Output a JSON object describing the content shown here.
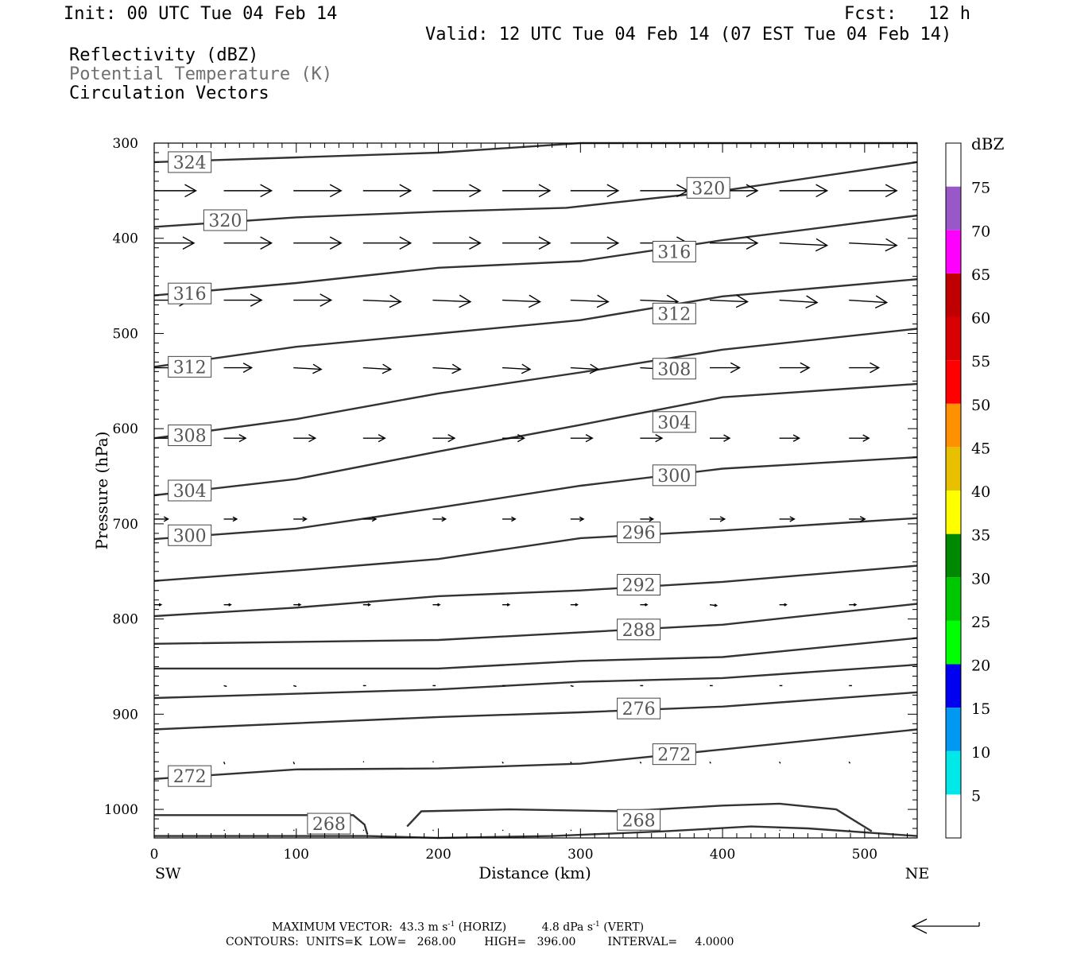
{
  "header": {
    "init": "Init: 00 UTC Tue 04 Feb 14",
    "fcst": "Fcst:   12 h",
    "valid": "Valid: 12 UTC Tue 04 Feb 14 (07 EST Tue 04 Feb 14)",
    "fields": [
      {
        "label": "Reflectivity (dBZ)",
        "color": "#000000"
      },
      {
        "label": "Potential Temperature (K)",
        "color": "#707070"
      },
      {
        "label": "Circulation Vectors",
        "color": "#000000"
      }
    ]
  },
  "footer": {
    "max_vector_prefix": "MAXIMUM VECTOR:  43.3 m s",
    "max_vector_sup1": "-1",
    "max_vector_mid": " (HORIZ)          4.8 dPa s",
    "max_vector_sup2": "-1",
    "max_vector_suffix": " (VERT)",
    "contours": "CONTOURS:  UNITS=K  LOW=   268.00        HIGH=   396.00         INTERVAL=     4.0000"
  },
  "chart_data": {
    "type": "cross-section",
    "xlabel": "Distance (km)",
    "ylabel": "Pressure (hPa)",
    "xlim": [
      0,
      537
    ],
    "ylim": [
      1030,
      300
    ],
    "x_ticks": [
      0,
      100,
      200,
      300,
      400,
      500
    ],
    "y_ticks": [
      300,
      400,
      500,
      600,
      700,
      800,
      900,
      1000
    ],
    "x_endpoints": {
      "left": "SW",
      "right": "NE"
    },
    "colorbar": {
      "title": "dBZ",
      "levels": [
        5,
        10,
        15,
        20,
        25,
        30,
        35,
        40,
        45,
        50,
        55,
        60,
        65,
        70,
        75
      ],
      "colors": [
        "#ffffff",
        "#00e8e8",
        "#0098f0",
        "#0000f0",
        "#00ff00",
        "#00c800",
        "#008800",
        "#ffff00",
        "#e8c000",
        "#ff9000",
        "#ff0000",
        "#d80000",
        "#c00000",
        "#ff00ff",
        "#9858c8",
        "#ffffff"
      ]
    },
    "theta_contours": [
      {
        "value": 324,
        "points": [
          [
            0,
            320
          ],
          [
            100,
            315
          ],
          [
            200,
            310
          ],
          [
            300,
            300
          ],
          [
            537,
            300
          ]
        ],
        "labels": [
          [
            25,
            320
          ]
        ]
      },
      {
        "value": 320,
        "points": [
          [
            0,
            388
          ],
          [
            100,
            378
          ],
          [
            200,
            372
          ],
          [
            290,
            368
          ],
          [
            400,
            350
          ],
          [
            537,
            320
          ]
        ],
        "labels": [
          [
            50,
            381
          ],
          [
            390,
            347
          ]
        ]
      },
      {
        "value": 316,
        "points": [
          [
            0,
            460
          ],
          [
            100,
            447
          ],
          [
            200,
            431
          ],
          [
            300,
            424
          ],
          [
            400,
            402
          ],
          [
            537,
            376
          ]
        ],
        "labels": [
          [
            25,
            458
          ],
          [
            366,
            414
          ]
        ]
      },
      {
        "value": 312,
        "points": [
          [
            0,
            535
          ],
          [
            100,
            514
          ],
          [
            200,
            500
          ],
          [
            300,
            486
          ],
          [
            400,
            461
          ],
          [
            537,
            443
          ]
        ],
        "labels": [
          [
            25,
            535
          ],
          [
            366,
            479
          ]
        ]
      },
      {
        "value": 308,
        "points": [
          [
            0,
            610
          ],
          [
            100,
            590
          ],
          [
            200,
            563
          ],
          [
            300,
            541
          ],
          [
            400,
            517
          ],
          [
            537,
            495
          ]
        ],
        "labels": [
          [
            25,
            607
          ],
          [
            366,
            537
          ]
        ]
      },
      {
        "value": 304,
        "points": [
          [
            0,
            670
          ],
          [
            100,
            653
          ],
          [
            200,
            624
          ],
          [
            300,
            596
          ],
          [
            400,
            567
          ],
          [
            537,
            553
          ]
        ],
        "labels": [
          [
            25,
            665
          ],
          [
            366,
            593
          ]
        ]
      },
      {
        "value": 300,
        "points": [
          [
            0,
            716
          ],
          [
            100,
            705
          ],
          [
            200,
            683
          ],
          [
            300,
            660
          ],
          [
            400,
            642
          ],
          [
            537,
            630
          ]
        ],
        "labels": [
          [
            25,
            712
          ],
          [
            366,
            649
          ]
        ]
      },
      {
        "value": 296,
        "points": [
          [
            0,
            760
          ],
          [
            100,
            749
          ],
          [
            200,
            737
          ],
          [
            300,
            715
          ],
          [
            400,
            707
          ],
          [
            537,
            694
          ]
        ],
        "labels": [
          [
            341,
            709
          ]
        ]
      },
      {
        "value": 292,
        "points": [
          [
            0,
            797
          ],
          [
            100,
            788
          ],
          [
            200,
            776
          ],
          [
            300,
            770
          ],
          [
            400,
            761
          ],
          [
            537,
            744
          ]
        ],
        "labels": [
          [
            341,
            764
          ]
        ]
      },
      {
        "value": 288,
        "points": [
          [
            0,
            826
          ],
          [
            200,
            822
          ],
          [
            300,
            814
          ],
          [
            400,
            806
          ],
          [
            537,
            784
          ]
        ],
        "labels": [
          [
            341,
            811
          ]
        ]
      },
      {
        "value": 284,
        "points": [
          [
            0,
            852
          ],
          [
            200,
            852
          ],
          [
            300,
            844
          ],
          [
            400,
            840
          ],
          [
            537,
            820
          ]
        ],
        "labels": []
      },
      {
        "value": 280,
        "points": [
          [
            0,
            883
          ],
          [
            200,
            874
          ],
          [
            300,
            866
          ],
          [
            400,
            862
          ],
          [
            537,
            848
          ]
        ],
        "labels": []
      },
      {
        "value": 276,
        "points": [
          [
            0,
            916
          ],
          [
            200,
            903
          ],
          [
            300,
            898
          ],
          [
            400,
            892
          ],
          [
            537,
            877
          ]
        ],
        "labels": [
          [
            341,
            894
          ]
        ]
      },
      {
        "value": 272,
        "points": [
          [
            0,
            968
          ],
          [
            100,
            958
          ],
          [
            200,
            957
          ],
          [
            300,
            952
          ],
          [
            400,
            937
          ],
          [
            537,
            916
          ]
        ],
        "labels": [
          [
            25,
            965
          ],
          [
            366,
            942
          ]
        ]
      },
      {
        "value": 268,
        "points": [
          [
            0,
            1006
          ],
          [
            140,
            1006
          ],
          [
            148,
            1016
          ],
          [
            150,
            1026
          ]
        ],
        "labels": [
          [
            123,
            1015
          ]
        ]
      },
      {
        "value": 268,
        "points": [
          [
            178,
            1018
          ],
          [
            188,
            1002
          ],
          [
            250,
            1000
          ],
          [
            330,
            1002
          ],
          [
            400,
            996
          ],
          [
            440,
            994
          ],
          [
            480,
            1000
          ],
          [
            505,
            1023
          ]
        ],
        "labels": [
          [
            341,
            1011
          ]
        ]
      },
      {
        "value": 268,
        "points": [
          [
            0,
            1028
          ],
          [
            150,
            1028
          ],
          [
            200,
            1030
          ],
          [
            280,
            1028
          ],
          [
            360,
            1023
          ],
          [
            420,
            1018
          ],
          [
            460,
            1020
          ],
          [
            537,
            1028
          ]
        ],
        "labels": []
      }
    ],
    "vectors": {
      "x": [
        0,
        49,
        98,
        147,
        196,
        245,
        293,
        342,
        391,
        440,
        489
      ],
      "levels": [
        {
          "p": 350,
          "u": [
            42,
            48,
            48,
            48,
            48,
            48,
            48,
            48,
            48,
            48,
            48
          ],
          "w": [
            0,
            0,
            0,
            0,
            0,
            0,
            0,
            0,
            0,
            0,
            0
          ]
        },
        {
          "p": 405,
          "u": [
            40,
            48,
            48,
            48,
            48,
            48,
            48,
            48,
            48,
            48,
            48
          ],
          "w": [
            0,
            0,
            0,
            0,
            0,
            0,
            0,
            0,
            0,
            -3,
            -3
          ]
        },
        {
          "p": 465,
          "u": [
            36,
            38,
            38,
            38,
            38,
            38,
            38,
            38,
            38,
            38,
            38
          ],
          "w": [
            0,
            0,
            0,
            -2,
            -2,
            -2,
            -2,
            -2,
            -2,
            -3,
            -3
          ]
        },
        {
          "p": 536,
          "u": [
            32,
            28,
            28,
            28,
            28,
            28,
            28,
            28,
            30,
            30,
            30
          ],
          "w": [
            0,
            0,
            -2,
            -2,
            -2,
            -2,
            -2,
            -2,
            0,
            0,
            0
          ]
        },
        {
          "p": 610,
          "u": [
            27,
            22,
            22,
            22,
            22,
            22,
            22,
            22,
            20,
            20,
            20
          ],
          "w": [
            0,
            0,
            0,
            0,
            0,
            0,
            0,
            0,
            0,
            0,
            0
          ]
        },
        {
          "p": 695,
          "u": [
            14,
            13,
            13,
            13,
            13,
            13,
            13,
            13,
            15,
            15,
            16
          ],
          "w": [
            0,
            0,
            0,
            0,
            0,
            0,
            0,
            0,
            0,
            0,
            0
          ]
        },
        {
          "p": 785,
          "u": [
            7,
            7,
            7,
            7,
            7,
            7,
            7,
            7,
            7,
            7,
            7
          ],
          "w": [
            0,
            0,
            0,
            0,
            0,
            0,
            0,
            0,
            -1,
            0,
            0
          ]
        },
        {
          "p": 870,
          "u": [
            3,
            3,
            3,
            3,
            3,
            3,
            3,
            3,
            3,
            3,
            3
          ],
          "w": [
            0,
            -1,
            -1,
            0,
            0,
            0,
            -1,
            0,
            0,
            0,
            0
          ]
        },
        {
          "p": 950,
          "u": [
            1,
            1,
            1,
            1,
            1,
            1,
            1,
            1,
            1,
            1,
            1
          ],
          "w": [
            0,
            -3,
            -3,
            0,
            0,
            -2,
            -2,
            -2,
            -2,
            -2,
            -2
          ]
        },
        {
          "p": 1022,
          "u": [
            1,
            1,
            1,
            1,
            1,
            1,
            1,
            1,
            1,
            1,
            1
          ],
          "w": [
            0,
            0,
            0,
            0,
            0,
            0,
            0,
            0,
            0,
            0,
            0
          ]
        }
      ]
    }
  }
}
